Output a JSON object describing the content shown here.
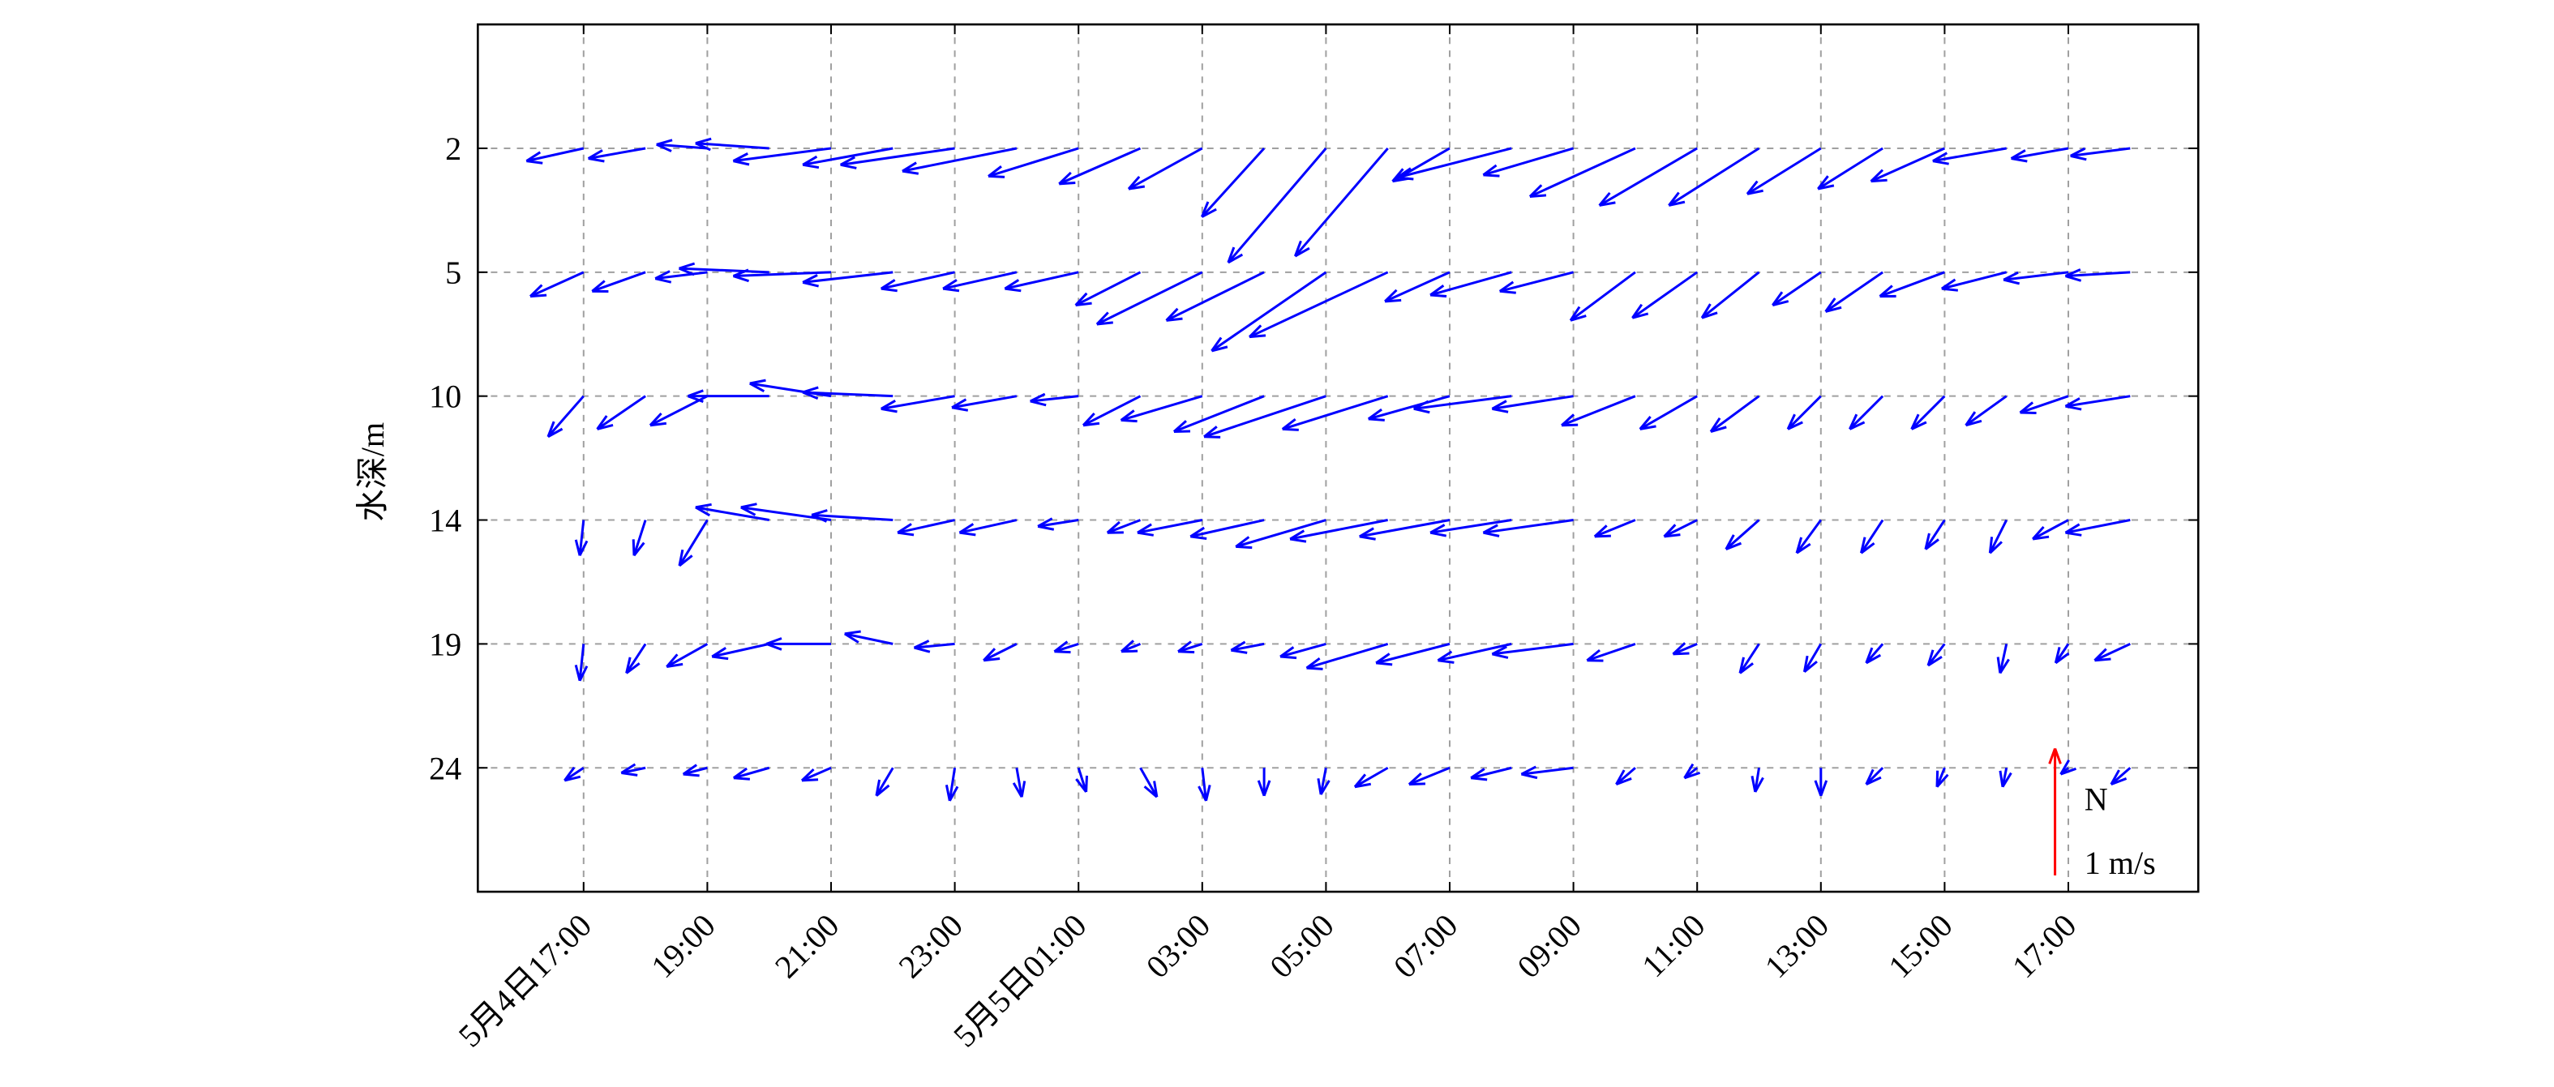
{
  "chart_data": {
    "type": "quiver",
    "ylabel": "水深/m",
    "x": [
      0,
      1,
      2,
      3,
      4,
      5,
      6,
      7,
      8,
      9,
      10,
      11,
      12,
      13,
      14,
      15,
      16,
      17,
      18,
      19,
      20,
      21,
      22,
      23,
      24,
      25
    ],
    "xlim": [
      -1.71,
      26.1
    ],
    "xticks": [
      {
        "value": 0,
        "label": "5月4日17:00"
      },
      {
        "value": 2,
        "label": "19:00"
      },
      {
        "value": 4,
        "label": "21:00"
      },
      {
        "value": 6,
        "label": "23:00"
      },
      {
        "value": 8,
        "label": "5月5日01:00"
      },
      {
        "value": 10,
        "label": "03:00"
      },
      {
        "value": 12,
        "label": "05:00"
      },
      {
        "value": 14,
        "label": "07:00"
      },
      {
        "value": 16,
        "label": "09:00"
      },
      {
        "value": 18,
        "label": "11:00"
      },
      {
        "value": 20,
        "label": "13:00"
      },
      {
        "value": 22,
        "label": "15:00"
      },
      {
        "value": 24,
        "label": "17:00"
      }
    ],
    "depths": [
      2,
      5,
      10,
      14,
      19,
      24
    ],
    "grid": true,
    "color": "#0000ff",
    "series": [
      {
        "u": [
          -0.45,
          -0.45,
          -0.4,
          -0.58,
          -0.77,
          -0.71,
          -0.9,
          -0.9,
          -0.71,
          -0.64,
          -0.58,
          -0.49,
          -0.77,
          -0.73,
          -0.45,
          -0.9,
          -0.71,
          -0.83,
          -0.77,
          -0.71,
          -0.58,
          -0.51,
          -0.58,
          -0.58,
          -0.45,
          -0.47
        ],
        "v": [
          -0.1,
          -0.08,
          0.03,
          0.04,
          -0.1,
          -0.13,
          -0.13,
          -0.18,
          -0.22,
          -0.28,
          -0.32,
          -0.54,
          -0.9,
          -0.85,
          -0.26,
          -0.23,
          -0.21,
          -0.38,
          -0.45,
          -0.45,
          -0.36,
          -0.32,
          -0.26,
          -0.1,
          -0.08,
          -0.06
        ]
      },
      {
        "u": [
          -0.42,
          -0.42,
          -0.41,
          -0.71,
          -0.77,
          -0.71,
          -0.58,
          -0.58,
          -0.58,
          -0.51,
          -0.83,
          -0.77,
          -0.9,
          -1.09,
          -0.51,
          -0.64,
          -0.58,
          -0.51,
          -0.51,
          -0.45,
          -0.38,
          -0.45,
          -0.51,
          -0.51,
          -0.51,
          -0.51
        ],
        "v": [
          -0.19,
          -0.15,
          -0.05,
          0.03,
          -0.03,
          -0.08,
          -0.13,
          -0.13,
          -0.13,
          -0.26,
          -0.41,
          -0.38,
          -0.62,
          -0.51,
          -0.23,
          -0.18,
          -0.15,
          -0.38,
          -0.36,
          -0.36,
          -0.26,
          -0.31,
          -0.19,
          -0.13,
          -0.06,
          -0.03
        ]
      },
      {
        "u": [
          -0.28,
          -0.38,
          -0.45,
          -0.64,
          -0.64,
          -0.71,
          -0.58,
          -0.51,
          -0.38,
          -0.45,
          -0.64,
          -0.71,
          -0.96,
          -0.83,
          -0.64,
          -0.77,
          -0.64,
          -0.58,
          -0.45,
          -0.38,
          -0.26,
          -0.26,
          -0.26,
          -0.32,
          -0.38,
          -0.51
        ],
        "v": [
          -0.32,
          -0.26,
          -0.23,
          0,
          0.1,
          0.03,
          -0.1,
          -0.09,
          -0.04,
          -0.23,
          -0.19,
          -0.28,
          -0.32,
          -0.26,
          -0.18,
          -0.1,
          -0.1,
          -0.23,
          -0.26,
          -0.28,
          -0.26,
          -0.26,
          -0.26,
          -0.23,
          -0.13,
          -0.08
        ]
      },
      {
        "u": [
          -0.03,
          -0.09,
          -0.22,
          -0.58,
          -0.71,
          -0.64,
          -0.45,
          -0.45,
          -0.32,
          -0.26,
          -0.51,
          -0.58,
          -0.71,
          -0.77,
          -0.71,
          -0.64,
          -0.71,
          -0.32,
          -0.26,
          -0.26,
          -0.19,
          -0.17,
          -0.15,
          -0.13,
          -0.28,
          -0.51
        ],
        "v": [
          -0.28,
          -0.28,
          -0.36,
          0.1,
          0.1,
          0.04,
          -0.1,
          -0.1,
          -0.05,
          -0.1,
          -0.1,
          -0.13,
          -0.21,
          -0.15,
          -0.13,
          -0.1,
          -0.1,
          -0.13,
          -0.13,
          -0.23,
          -0.26,
          -0.26,
          -0.23,
          -0.26,
          -0.15,
          -0.1
        ]
      },
      {
        "u": [
          -0.03,
          -0.15,
          -0.32,
          -0.45,
          -0.51,
          -0.38,
          -0.32,
          -0.26,
          -0.19,
          -0.15,
          -0.19,
          -0.26,
          -0.36,
          -0.64,
          -0.58,
          -0.58,
          -0.64,
          -0.38,
          -0.19,
          -0.15,
          -0.13,
          -0.13,
          -0.13,
          -0.05,
          -0.1,
          -0.28
        ],
        "v": [
          -0.29,
          -0.23,
          -0.18,
          -0.1,
          0,
          0.08,
          -0.03,
          -0.13,
          -0.06,
          -0.06,
          -0.06,
          -0.05,
          -0.1,
          -0.19,
          -0.15,
          -0.13,
          -0.08,
          -0.13,
          -0.08,
          -0.23,
          -0.22,
          -0.15,
          -0.17,
          -0.23,
          -0.15,
          -0.13
        ]
      },
      {
        "u": [
          -0.15,
          -0.19,
          -0.19,
          -0.28,
          -0.23,
          -0.13,
          -0.04,
          0.04,
          0.06,
          0.13,
          0.03,
          0,
          -0.04,
          -0.26,
          -0.32,
          -0.32,
          -0.41,
          -0.15,
          -0.1,
          -0.03,
          0,
          -0.13,
          -0.06,
          -0.03,
          -0.06,
          -0.15
        ],
        "v": [
          -0.1,
          -0.04,
          -0.05,
          -0.08,
          -0.1,
          -0.22,
          -0.26,
          -0.23,
          -0.19,
          -0.23,
          -0.26,
          -0.22,
          -0.21,
          -0.15,
          -0.13,
          -0.08,
          -0.05,
          -0.13,
          -0.08,
          -0.19,
          -0.22,
          -0.13,
          -0.15,
          -0.15,
          -0.05,
          -0.13
        ]
      }
    ],
    "reference": {
      "value": 1,
      "label": "1 m/s",
      "direction": "N",
      "color": "#ff0000"
    }
  }
}
